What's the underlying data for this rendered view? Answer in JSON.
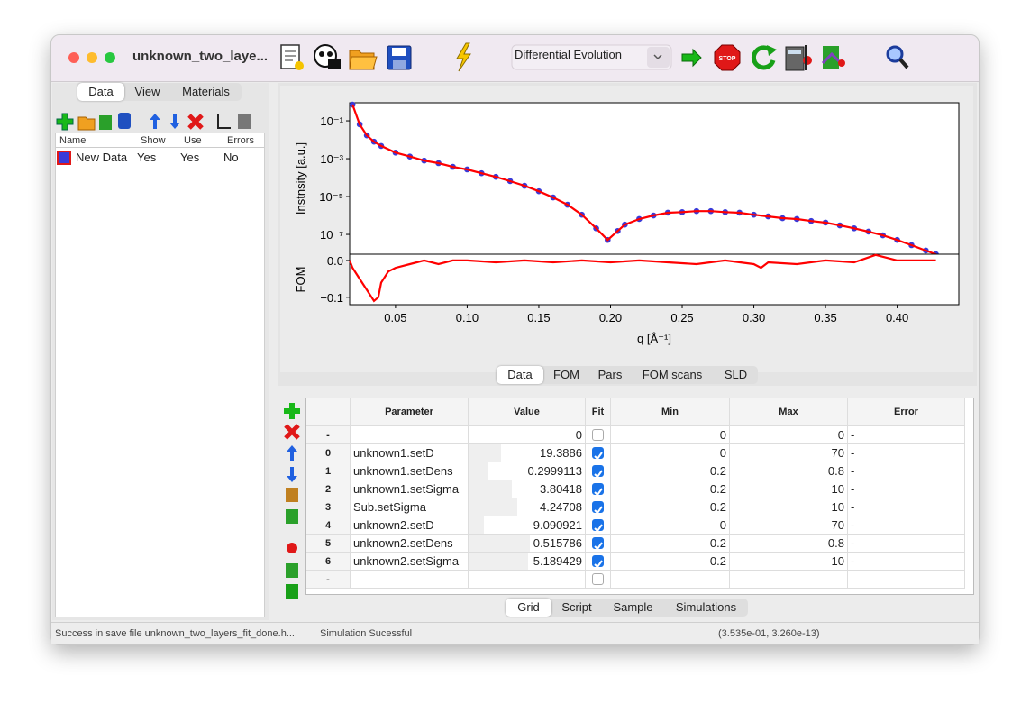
{
  "window": {
    "title": "unknown_two_laye..."
  },
  "toolbar": {
    "algorithm": "Differential Evolution"
  },
  "left_panel": {
    "tabs": [
      "Data",
      "View",
      "Materials"
    ],
    "selected_tab": 0,
    "columns": [
      "Name",
      "Show",
      "Use",
      "Errors"
    ],
    "rows": [
      [
        "New Data",
        "Yes",
        "Yes",
        "No"
      ]
    ]
  },
  "chart_data": [
    {
      "type": "line",
      "ylog": true,
      "ylabel": "Instnsity [a.u.]",
      "xlim": [
        0.018,
        0.443
      ],
      "ylim": [
        9e-09,
        0.9
      ],
      "yticks": [
        {
          "value": 0.1,
          "label": "10⁻¹"
        },
        {
          "value": 0.001,
          "label": "10⁻³"
        },
        {
          "value": 1e-05,
          "label": "10⁻⁵"
        },
        {
          "value": 1e-07,
          "label": "10⁻⁷"
        }
      ],
      "x": [
        0.02,
        0.025,
        0.03,
        0.035,
        0.04,
        0.05,
        0.06,
        0.07,
        0.08,
        0.09,
        0.1,
        0.11,
        0.12,
        0.13,
        0.14,
        0.15,
        0.16,
        0.17,
        0.18,
        0.19,
        0.198,
        0.205,
        0.21,
        0.22,
        0.23,
        0.24,
        0.25,
        0.26,
        0.27,
        0.28,
        0.29,
        0.3,
        0.31,
        0.32,
        0.33,
        0.34,
        0.35,
        0.36,
        0.37,
        0.38,
        0.39,
        0.4,
        0.41,
        0.42,
        0.427
      ],
      "series": [
        {
          "color": "#3a3ad8",
          "marker": true,
          "values": [
            0.72,
            0.065,
            0.017,
            0.0079,
            0.0047,
            0.0021,
            0.0013,
            0.00079,
            0.00058,
            0.00037,
            0.00027,
            0.00017,
            0.00011,
            6.5e-05,
            3.7e-05,
            1.9e-05,
            8.9e-06,
            3.7e-06,
            1.1e-06,
            2.1e-07,
            5.1e-08,
            1.5e-07,
            3.3e-07,
            6.5e-07,
            1e-06,
            1.4e-06,
            1.5e-06,
            1.7e-06,
            1.7e-06,
            1.5e-06,
            1.4e-06,
            1.1e-06,
            8.9e-07,
            7.2e-07,
            6.5e-07,
            5.1e-07,
            4.2e-07,
            3e-07,
            2.1e-07,
            1.4e-07,
            8.9e-08,
            5.1e-08,
            2.7e-08,
            1.4e-08,
            8.9e-09
          ]
        },
        {
          "color": "#ff0000",
          "marker": false,
          "values": [
            0.72,
            0.065,
            0.017,
            0.0079,
            0.0047,
            0.0021,
            0.0013,
            0.00079,
            0.00058,
            0.00037,
            0.00027,
            0.00017,
            0.00011,
            6.5e-05,
            3.7e-05,
            1.9e-05,
            8.9e-06,
            3.7e-06,
            1.1e-06,
            2.1e-07,
            5.1e-08,
            1.5e-07,
            3.3e-07,
            6.5e-07,
            1e-06,
            1.4e-06,
            1.5e-06,
            1.7e-06,
            1.7e-06,
            1.5e-06,
            1.4e-06,
            1.1e-06,
            8.9e-07,
            7.2e-07,
            6.5e-07,
            5.1e-07,
            4.2e-07,
            3e-07,
            2.1e-07,
            1.4e-07,
            8.9e-08,
            5.1e-08,
            2.7e-08,
            1.4e-08,
            8.9e-09
          ]
        }
      ]
    },
    {
      "type": "line",
      "ylog": false,
      "ylabel": "FOM",
      "xlabel": "q [Å⁻¹]",
      "xlim": [
        0.018,
        0.443
      ],
      "ylim": [
        -0.12,
        0.017
      ],
      "yticks": [
        {
          "value": 0,
          "label": "0.0"
        },
        {
          "value": -0.1,
          "label": "−0.1"
        }
      ],
      "xticks": [
        0.05,
        {
          "value": 0.1,
          "label": "0.10"
        },
        0.15,
        {
          "value": 0.2,
          "label": "0.20"
        },
        0.25,
        {
          "value": 0.3,
          "label": "0.30"
        },
        0.35,
        {
          "value": 0.4,
          "label": "0.40"
        }
      ],
      "x": [
        0.018,
        0.02,
        0.025,
        0.03,
        0.035,
        0.038,
        0.04,
        0.045,
        0.05,
        0.06,
        0.07,
        0.08,
        0.09,
        0.1,
        0.12,
        0.14,
        0.16,
        0.18,
        0.2,
        0.22,
        0.24,
        0.26,
        0.28,
        0.3,
        0.305,
        0.31,
        0.33,
        0.35,
        0.37,
        0.385,
        0.4,
        0.427
      ],
      "series": [
        {
          "color": "#ff0000",
          "marker": false,
          "values": [
            0,
            -0.02,
            -0.05,
            -0.08,
            -0.11,
            -0.1,
            -0.06,
            -0.03,
            -0.02,
            -0.01,
            0,
            -0.01,
            0,
            0,
            -0.005,
            0,
            -0.005,
            0,
            -0.005,
            0,
            -0.005,
            -0.01,
            0,
            -0.01,
            -0.02,
            -0.005,
            -0.01,
            0,
            -0.005,
            0.015,
            0,
            0
          ]
        }
      ]
    }
  ],
  "plot_tabs": {
    "tabs": [
      "Data",
      "FOM",
      "Pars",
      "FOM scans",
      "SLD"
    ],
    "selected_tab": 0
  },
  "grid": {
    "columns": [
      "Parameter",
      "Value",
      "Fit",
      "Min",
      "Max",
      "Error"
    ],
    "rows": [
      {
        "label": "-",
        "value": "0",
        "fit": false,
        "min": "0",
        "max": "0",
        "error": "-"
      },
      {
        "label": "0",
        "parameter": "unknown1.setD",
        "value": "19.3886",
        "fit": true,
        "min": "0",
        "max": "70",
        "error": "-"
      },
      {
        "label": "1",
        "parameter": "unknown1.setDens",
        "value": "0.2999113",
        "fit": true,
        "min": "0.2",
        "max": "0.8",
        "error": "-"
      },
      {
        "label": "2",
        "parameter": "unknown1.setSigma",
        "value": "3.80418",
        "fit": true,
        "min": "0.2",
        "max": "10",
        "error": "-"
      },
      {
        "label": "3",
        "parameter": "Sub.setSigma",
        "value": "4.24708",
        "fit": true,
        "min": "0.2",
        "max": "10",
        "error": "-"
      },
      {
        "label": "4",
        "parameter": "unknown2.setD",
        "value": "9.090921",
        "fit": true,
        "min": "0",
        "max": "70",
        "error": "-"
      },
      {
        "label": "5",
        "parameter": "unknown2.setDens",
        "value": "0.515786",
        "fit": true,
        "min": "0.2",
        "max": "0.8",
        "error": "-"
      },
      {
        "label": "6",
        "parameter": "unknown2.setSigma",
        "value": "5.189429",
        "fit": true,
        "min": "0.2",
        "max": "10",
        "error": "-"
      },
      {
        "label": "-",
        "fit": false
      }
    ]
  },
  "bottom_tabs": {
    "tabs": [
      "Grid",
      "Script",
      "Sample",
      "Simulations"
    ],
    "selected_tab": 0
  },
  "status": [
    "Success in save file unknown_two_layers_fit_done.h...",
    "Simulation Sucessful",
    "(3.535e-01, 3.260e-13)"
  ]
}
